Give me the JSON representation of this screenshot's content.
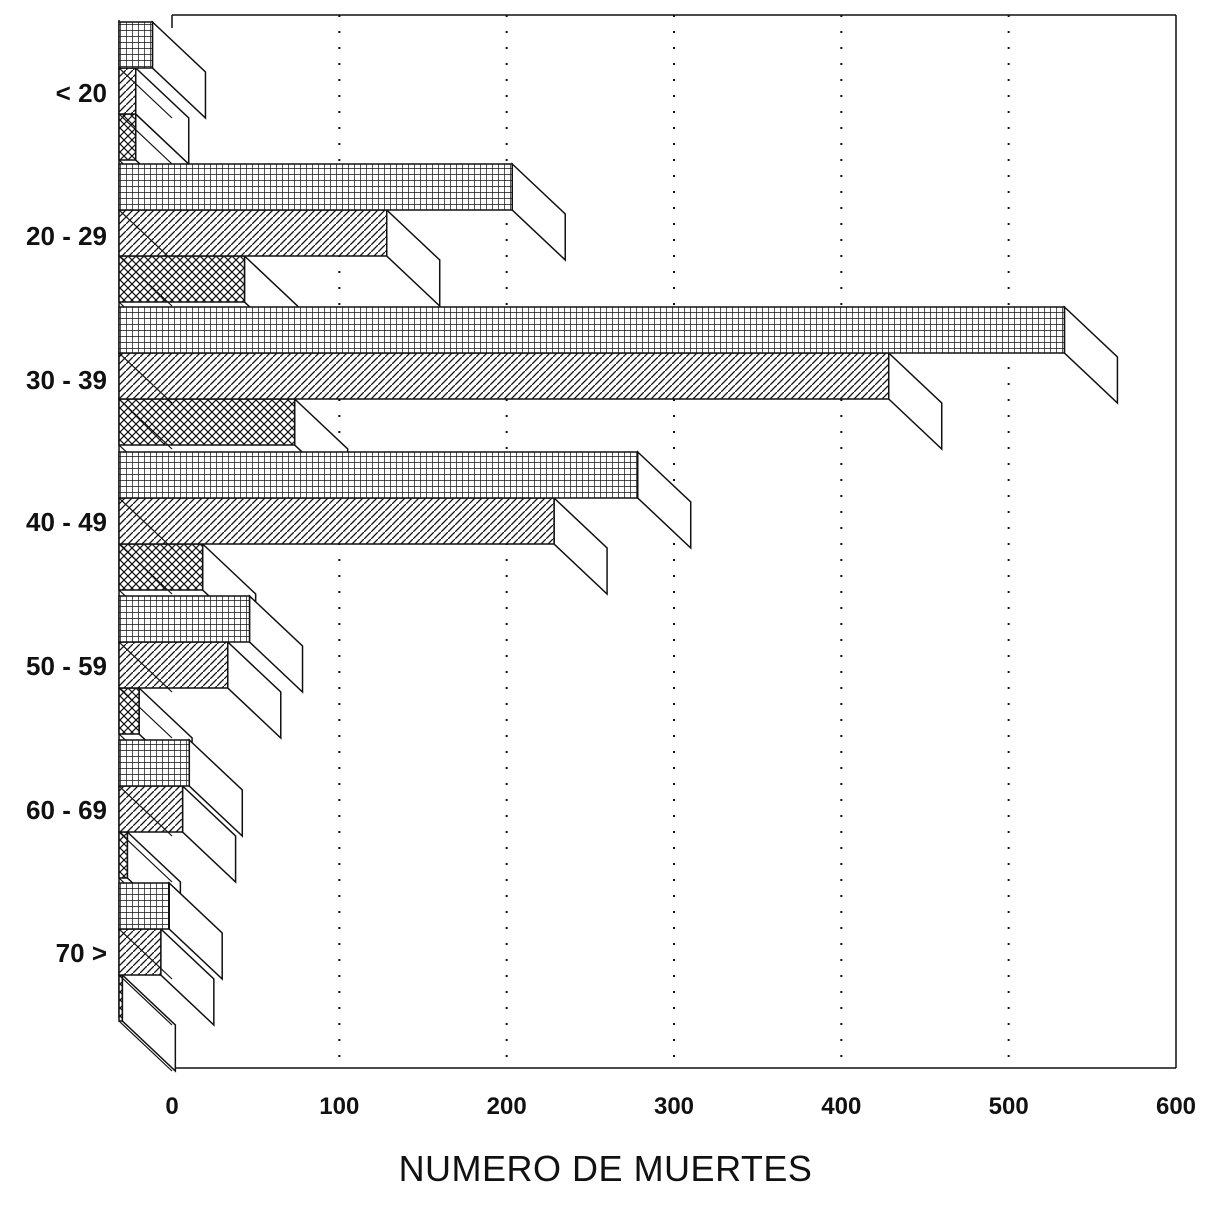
{
  "chart_data": {
    "type": "bar",
    "orientation": "horizontal",
    "style": "3d",
    "title": "",
    "xlabel": "NUMERO DE MUERTES",
    "ylabel": "",
    "xlim": [
      0,
      600
    ],
    "x_ticks": [
      "0",
      "100",
      "200",
      "300",
      "400",
      "500",
      "600"
    ],
    "grid": "vertical dotted",
    "legend": "none",
    "categories": [
      "< 20",
      "20 - 29",
      "30 - 39",
      "40 - 49",
      "50 - 59",
      "60 - 69",
      "70 >"
    ],
    "series": [
      {
        "pattern": "grid",
        "values": [
          20,
          235,
          565,
          310,
          78,
          42,
          30
        ]
      },
      {
        "pattern": "diagonal",
        "values": [
          10,
          160,
          460,
          260,
          65,
          38,
          25
        ]
      },
      {
        "pattern": "crosshatch",
        "values": [
          10,
          75,
          105,
          50,
          12,
          5,
          2
        ]
      }
    ]
  }
}
